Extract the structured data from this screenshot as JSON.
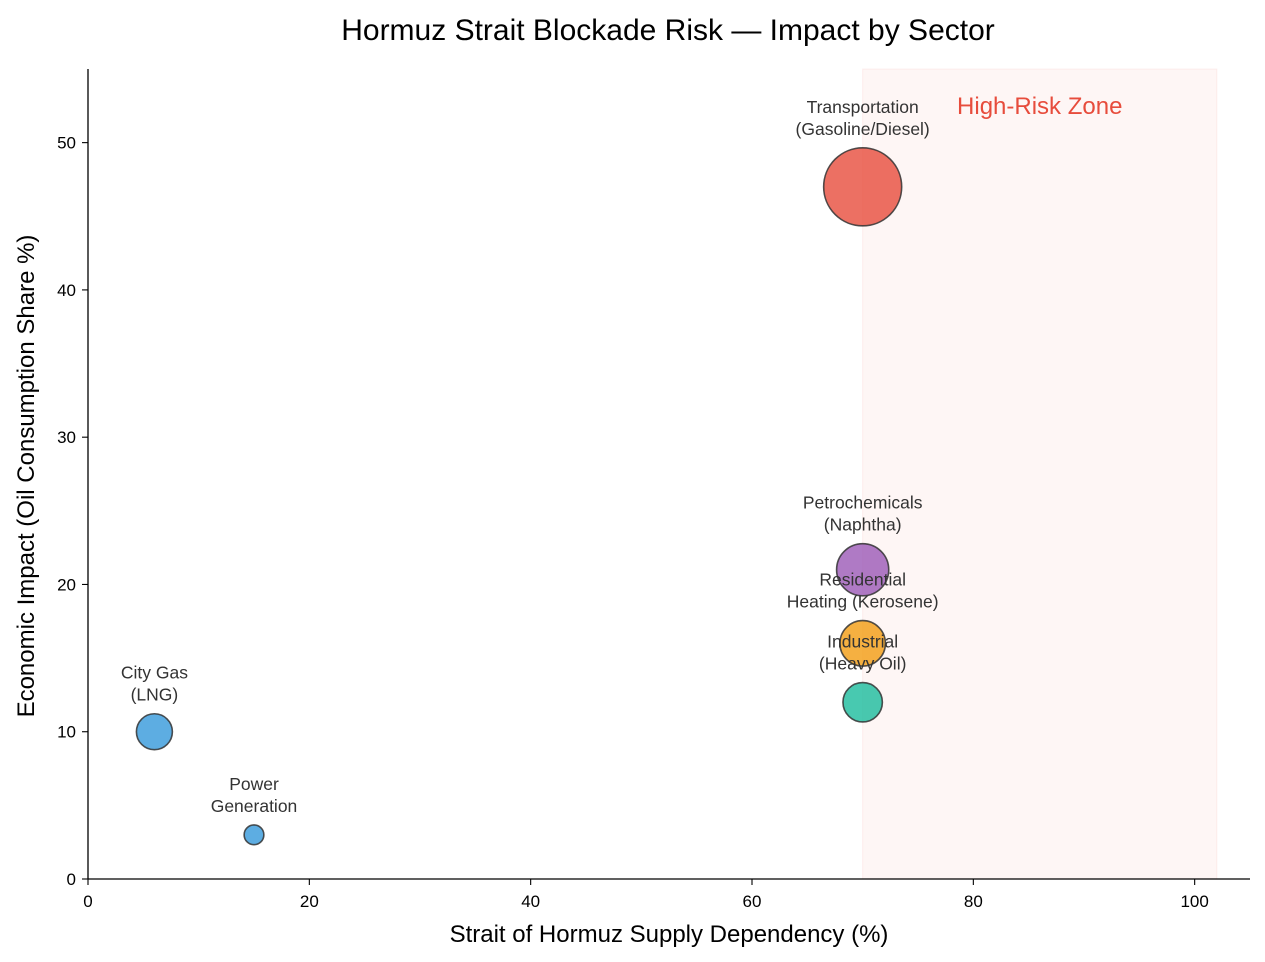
{
  "chart_data": {
    "type": "scatter",
    "title": "Hormuz Strait Blockade Risk — Impact by Sector",
    "xlabel": "Strait of Hormuz Supply Dependency (%)",
    "ylabel": "Economic Impact (Oil Consumption Share %)",
    "xlim": [
      0,
      105
    ],
    "ylim": [
      0,
      55
    ],
    "xticks": [
      0,
      20,
      40,
      60,
      80,
      100
    ],
    "yticks": [
      0,
      10,
      20,
      30,
      40,
      50
    ],
    "grid": false,
    "high_risk_zone": {
      "x_from": 70,
      "x_to": 102,
      "label": "High-Risk Zone",
      "color": "#e74c3c"
    },
    "points": [
      {
        "label_lines": [
          "Transportation",
          "(Gasoline/Diesel)"
        ],
        "x": 70,
        "y": 47,
        "bubble": 47,
        "color": "#e74c3c"
      },
      {
        "label_lines": [
          "Petrochemicals",
          "(Naphtha)"
        ],
        "x": 70,
        "y": 21,
        "bubble": 21,
        "color": "#9b59b6"
      },
      {
        "label_lines": [
          "Residential",
          "Heating (Kerosene)"
        ],
        "x": 70,
        "y": 16,
        "bubble": 16,
        "color": "#f39c12"
      },
      {
        "label_lines": [
          "Industrial",
          "(Heavy Oil)"
        ],
        "x": 70,
        "y": 12,
        "bubble": 12,
        "color": "#1abc9c"
      },
      {
        "label_lines": [
          "City Gas",
          "(LNG)"
        ],
        "x": 6,
        "y": 10,
        "bubble": 10,
        "color": "#3498db"
      },
      {
        "label_lines": [
          "Power",
          "Generation"
        ],
        "x": 15,
        "y": 3,
        "bubble": 3,
        "color": "#3498db"
      }
    ]
  }
}
